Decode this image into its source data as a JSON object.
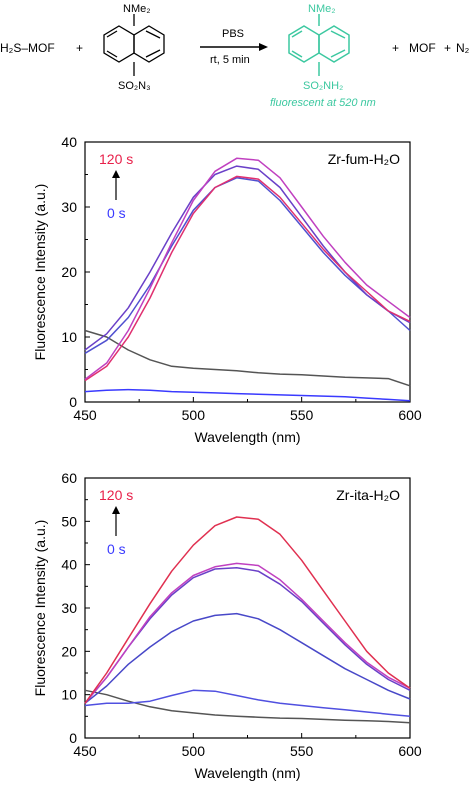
{
  "scheme": {
    "reactant1": "H₂S–MOF",
    "plus": "+",
    "nme2_label": "NMe₂",
    "so2n3_label": "SO₂N₃",
    "so2nh2_label": "SO₂NH₂",
    "arrow_top": "PBS",
    "arrow_bottom": "rt, 5 min",
    "product_note": "fluorescent at 520 nm",
    "byproduct_mof": "MOF",
    "byproduct_n2": "N₂",
    "product_color": "#3cc8a0"
  },
  "chart_data": [
    {
      "type": "line",
      "annotation": "Zr-fum-H₂O",
      "time_start_label": "0 s",
      "time_end_label": "120 s",
      "xlabel": "Wavelength (nm)",
      "ylabel": "Fluorescence Intensity (a.u.)",
      "xlim": [
        450,
        600
      ],
      "ylim": [
        0,
        40
      ],
      "xticks": [
        450,
        500,
        550,
        600
      ],
      "yticks": [
        0,
        10,
        20,
        30,
        40
      ],
      "x": [
        450,
        460,
        470,
        480,
        490,
        500,
        510,
        520,
        530,
        540,
        550,
        560,
        570,
        580,
        590,
        600
      ],
      "series": [
        {
          "color": "#3a3aff",
          "values": [
            1.6,
            1.8,
            1.9,
            1.8,
            1.6,
            1.5,
            1.4,
            1.3,
            1.2,
            1.1,
            1.0,
            0.9,
            0.8,
            0.6,
            0.4,
            0.2
          ]
        },
        {
          "color": "#555555",
          "values": [
            11,
            10,
            8,
            6.5,
            5.5,
            5.2,
            5.0,
            4.8,
            4.5,
            4.3,
            4.2,
            4.0,
            3.8,
            3.7,
            3.6,
            2.5
          ]
        },
        {
          "color": "#5050d0",
          "values": [
            7.5,
            9.5,
            13,
            18,
            24,
            29.5,
            33,
            34.5,
            34,
            31,
            27,
            23,
            19.5,
            16.5,
            14,
            11
          ]
        },
        {
          "color": "#6a40c8",
          "values": [
            8,
            10.5,
            14.5,
            20,
            26,
            31.5,
            35,
            36.3,
            35.8,
            33,
            28.5,
            24,
            20,
            16.5,
            14,
            12.2
          ]
        },
        {
          "color": "#e03070",
          "values": [
            3.3,
            5.5,
            10,
            16,
            23,
            29,
            33,
            34.7,
            34.3,
            31.5,
            27.5,
            23.5,
            20,
            17,
            14,
            12.4
          ]
        },
        {
          "color": "#c040c0",
          "values": [
            3.5,
            6,
            11,
            17.5,
            24.5,
            31,
            35.5,
            37.5,
            37.2,
            34.5,
            30,
            25.5,
            21.5,
            18,
            15.5,
            13
          ]
        }
      ]
    },
    {
      "type": "line",
      "annotation": "Zr-ita-H₂O",
      "time_start_label": "0 s",
      "time_end_label": "120 s",
      "xlabel": "Wavelength (nm)",
      "ylabel": "Fluorescence Intensity (a.u.)",
      "xlim": [
        450,
        600
      ],
      "ylim": [
        0,
        60
      ],
      "xticks": [
        450,
        500,
        550,
        600
      ],
      "yticks": [
        0,
        10,
        20,
        30,
        40,
        50,
        60
      ],
      "x": [
        450,
        460,
        470,
        480,
        490,
        500,
        510,
        520,
        530,
        540,
        550,
        560,
        570,
        580,
        590,
        600
      ],
      "series": [
        {
          "color": "#555555",
          "values": [
            11,
            10,
            8.5,
            7.2,
            6.3,
            5.8,
            5.3,
            5.0,
            4.8,
            4.6,
            4.5,
            4.3,
            4.1,
            4.0,
            3.8,
            3.5
          ]
        },
        {
          "color": "#5050e0",
          "values": [
            7.5,
            8,
            8,
            8.5,
            9.8,
            11,
            10.8,
            9.8,
            8.8,
            8,
            7.5,
            7,
            6.5,
            6,
            5.5,
            5
          ]
        },
        {
          "color": "#4848c8",
          "values": [
            8,
            12,
            17,
            21,
            24.5,
            27,
            28.3,
            28.7,
            27.5,
            25,
            22,
            19,
            16,
            13.5,
            11,
            9
          ]
        },
        {
          "color": "#6a40c8",
          "values": [
            8,
            14,
            21,
            27.5,
            33,
            37,
            39,
            39.3,
            38.5,
            35.5,
            31.5,
            26.5,
            21.5,
            17,
            13.5,
            11
          ]
        },
        {
          "color": "#c040c0",
          "values": [
            8,
            14,
            21,
            28,
            33.5,
            37.5,
            39.5,
            40.3,
            39.8,
            36.5,
            32,
            27,
            22,
            17.5,
            14,
            11.5
          ]
        },
        {
          "color": "#e03050",
          "values": [
            8,
            15,
            23,
            31,
            38.5,
            44.5,
            49,
            51,
            50.5,
            47,
            41,
            34,
            27,
            20,
            15,
            11.5
          ]
        }
      ]
    }
  ]
}
